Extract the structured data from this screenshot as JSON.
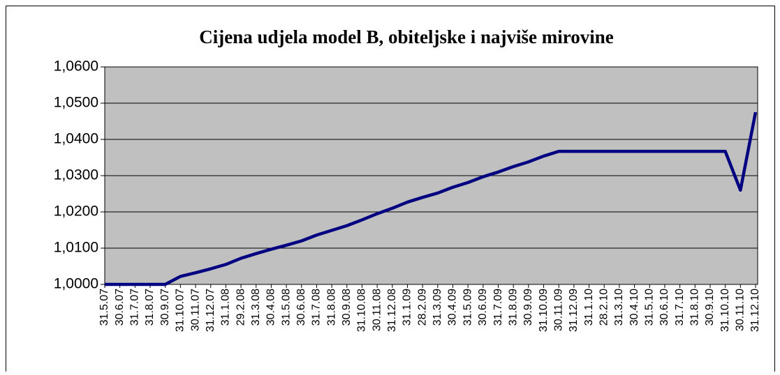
{
  "chart_data": {
    "type": "line",
    "title": "Cijena udjela model B, obiteljske i najviše mirovine",
    "categories": [
      "31.5.07",
      "30.6.07",
      "31.7.07",
      "31.8.07",
      "30.9.07",
      "31.10.07",
      "30.11.07",
      "31.12.07",
      "31.1.08",
      "29.2.08",
      "31.3.08",
      "30.4.08",
      "31.5.08",
      "30.6.08",
      "31.7.08",
      "31.8.08",
      "30.9.08",
      "31.10.08",
      "30.11.08",
      "31.12.08",
      "31.1.09",
      "28.2.09",
      "31.3.09",
      "30.4.09",
      "31.5.09",
      "30.6.09",
      "31.7.09",
      "31.8.09",
      "30.9.09",
      "31.10.09",
      "30.11.09",
      "31.12.09",
      "31.1.10",
      "28.2.10",
      "31.3.10",
      "30.4.10",
      "31.5.10",
      "30.6.10",
      "31.7.10",
      "31.8.10",
      "30.9.10",
      "31.10.10",
      "30.11.10",
      "31.12.10"
    ],
    "series": [
      {
        "color": "#000080",
        "values": [
          1.0,
          1.0,
          1.0,
          1.0,
          1.0,
          1.0022,
          1.0032,
          1.0043,
          1.0055,
          1.0072,
          1.0085,
          1.0097,
          1.0108,
          1.012,
          1.0136,
          1.0149,
          1.0162,
          1.0178,
          1.0195,
          1.021,
          1.0227,
          1.024,
          1.0252,
          1.0268,
          1.0281,
          1.0297,
          1.031,
          1.0325,
          1.0338,
          1.0354,
          1.0367,
          1.0367,
          1.0367,
          1.0367,
          1.0367,
          1.0367,
          1.0367,
          1.0367,
          1.0367,
          1.0367,
          1.0367,
          1.0367,
          1.026,
          1.0475
        ]
      }
    ],
    "ylim": [
      1.0,
      1.06
    ],
    "yticks": [
      {
        "value": 1.0,
        "label": "1,0000"
      },
      {
        "value": 1.01,
        "label": "1,0100"
      },
      {
        "value": 1.02,
        "label": "1,0200"
      },
      {
        "value": 1.03,
        "label": "1,0300"
      },
      {
        "value": 1.04,
        "label": "1,0400"
      },
      {
        "value": 1.05,
        "label": "1,0500"
      },
      {
        "value": 1.06,
        "label": "1,0600"
      }
    ],
    "grid": true,
    "plot_background": "#c0c0c0"
  }
}
